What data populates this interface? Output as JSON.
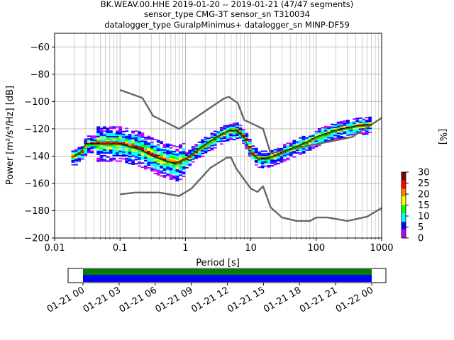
{
  "chart_data": {
    "type": "heatmap",
    "title_lines": [
      "BK.WEAV.00.HHE   2019-01-20 -- 2019-01-21  (47/47 segments)",
      "sensor_type CMG-3T sensor_sn T310034",
      "datalogger_type GuralpMinimus+ datalogger_sn MINP-DF59"
    ],
    "xlabel": "Period [s]",
    "ylabel": "Power [m²/s⁴/Hz] [dB]",
    "xscale": "log",
    "xlim": [
      0.01,
      1000
    ],
    "ylim": [
      -200,
      -50
    ],
    "x_ticks": [
      {
        "value": 0.01,
        "label": "0.01"
      },
      {
        "value": 0.1,
        "label": "0.1"
      },
      {
        "value": 1,
        "label": "1"
      },
      {
        "value": 10,
        "label": "10"
      },
      {
        "value": 100,
        "label": "100"
      },
      {
        "value": 1000,
        "label": "1000"
      }
    ],
    "y_ticks": [
      {
        "value": -60,
        "label": "−60"
      },
      {
        "value": -80,
        "label": "−80"
      },
      {
        "value": -100,
        "label": "−100"
      },
      {
        "value": -120,
        "label": "−120"
      },
      {
        "value": -140,
        "label": "−140"
      },
      {
        "value": -160,
        "label": "−160"
      },
      {
        "value": -180,
        "label": "−180"
      },
      {
        "value": -200,
        "label": "−200"
      }
    ],
    "grid": true,
    "colorbar": {
      "label": "[%]",
      "range": [
        0,
        30
      ],
      "ticks": [
        {
          "value": 0,
          "label": "0"
        },
        {
          "value": 5,
          "label": "5"
        },
        {
          "value": 10,
          "label": "10"
        },
        {
          "value": 15,
          "label": "15"
        },
        {
          "value": 20,
          "label": "20"
        },
        {
          "value": 25,
          "label": "25"
        },
        {
          "value": 30,
          "label": "30"
        }
      ],
      "colors": [
        "#ffffff",
        "#bf00ff",
        "#0000ff",
        "#00ffff",
        "#00ff00",
        "#ffff00",
        "#ff8000",
        "#ff0000",
        "#800000"
      ]
    },
    "series": [
      {
        "role": "noise-model-high",
        "color": "#666666",
        "points": [
          [
            0.1,
            -91.5
          ],
          [
            0.22,
            -97.4
          ],
          [
            0.32,
            -110.5
          ],
          [
            0.8,
            -120
          ],
          [
            3.8,
            -98
          ],
          [
            4.6,
            -96.5
          ],
          [
            6.3,
            -101
          ],
          [
            7.9,
            -113.5
          ],
          [
            15.4,
            -120
          ],
          [
            20,
            -138
          ],
          [
            354.8,
            -126
          ],
          [
            1000,
            -112
          ]
        ]
      },
      {
        "role": "noise-model-low",
        "color": "#666666",
        "points": [
          [
            0.1,
            -168
          ],
          [
            0.17,
            -166.7
          ],
          [
            0.4,
            -166.7
          ],
          [
            0.8,
            -169.2
          ],
          [
            1.24,
            -163.7
          ],
          [
            2.4,
            -148.6
          ],
          [
            4.3,
            -141.1
          ],
          [
            5.0,
            -141.1
          ],
          [
            6.0,
            -149.2
          ],
          [
            10.0,
            -163.8
          ],
          [
            12.6,
            -166.2
          ],
          [
            15.4,
            -162.1
          ],
          [
            20.0,
            -177.5
          ],
          [
            30.0,
            -185
          ],
          [
            50.0,
            -187.5
          ],
          [
            80,
            -187.5
          ],
          [
            100,
            -185
          ],
          [
            150,
            -185
          ],
          [
            300,
            -187.5
          ],
          [
            600,
            -184.4
          ],
          [
            1000,
            -178
          ]
        ]
      },
      {
        "role": "mode-psd",
        "color": "#000000",
        "points": [
          [
            0.02,
            -140
          ],
          [
            0.025,
            -137
          ],
          [
            0.03,
            -131
          ],
          [
            0.05,
            -131
          ],
          [
            0.1,
            -131
          ],
          [
            0.2,
            -135
          ],
          [
            0.3,
            -139.5
          ],
          [
            0.5,
            -143.5
          ],
          [
            0.7,
            -145.5
          ],
          [
            1.0,
            -142
          ],
          [
            2.0,
            -131.5
          ],
          [
            3.0,
            -126
          ],
          [
            4.5,
            -121.5
          ],
          [
            6.0,
            -121.5
          ],
          [
            8.0,
            -127
          ],
          [
            10,
            -138
          ],
          [
            13,
            -142
          ],
          [
            17,
            -142
          ],
          [
            25,
            -139
          ],
          [
            40,
            -135
          ],
          [
            70,
            -130
          ],
          [
            100,
            -126
          ],
          [
            200,
            -121
          ],
          [
            400,
            -118
          ],
          [
            700,
            -117
          ]
        ]
      },
      {
        "role": "mean-psd",
        "color": "#00aa00",
        "points": [
          [
            0.02,
            -140.5
          ],
          [
            0.025,
            -137.5
          ],
          [
            0.03,
            -131.5
          ],
          [
            0.05,
            -131.5
          ],
          [
            0.1,
            -131.5
          ],
          [
            0.2,
            -135.5
          ],
          [
            0.3,
            -140
          ],
          [
            0.5,
            -144
          ],
          [
            0.7,
            -146
          ],
          [
            1.0,
            -142.5
          ],
          [
            2.0,
            -132
          ],
          [
            3.0,
            -126.5
          ],
          [
            4.5,
            -122
          ],
          [
            6.0,
            -122
          ],
          [
            8.0,
            -127.5
          ],
          [
            10,
            -138.5
          ],
          [
            13,
            -142.5
          ],
          [
            17,
            -142.5
          ],
          [
            25,
            -139.5
          ],
          [
            40,
            -135.5
          ],
          [
            70,
            -130.5
          ],
          [
            100,
            -126.5
          ],
          [
            200,
            -121.5
          ],
          [
            400,
            -118.5
          ],
          [
            700,
            -117.5
          ]
        ]
      }
    ],
    "density_band": {
      "period_range": [
        0.018,
        700
      ],
      "spread_db": 14
    },
    "timeline": {
      "tick_labels": [
        "01-21 00",
        "01-21 03",
        "01-21 06",
        "01-21 09",
        "01-21 12",
        "01-21 15",
        "01-21 18",
        "01-21 21",
        "01-22 00"
      ],
      "coverage_colors": {
        "data": "#008000",
        "processed": "#0000ff"
      }
    }
  }
}
